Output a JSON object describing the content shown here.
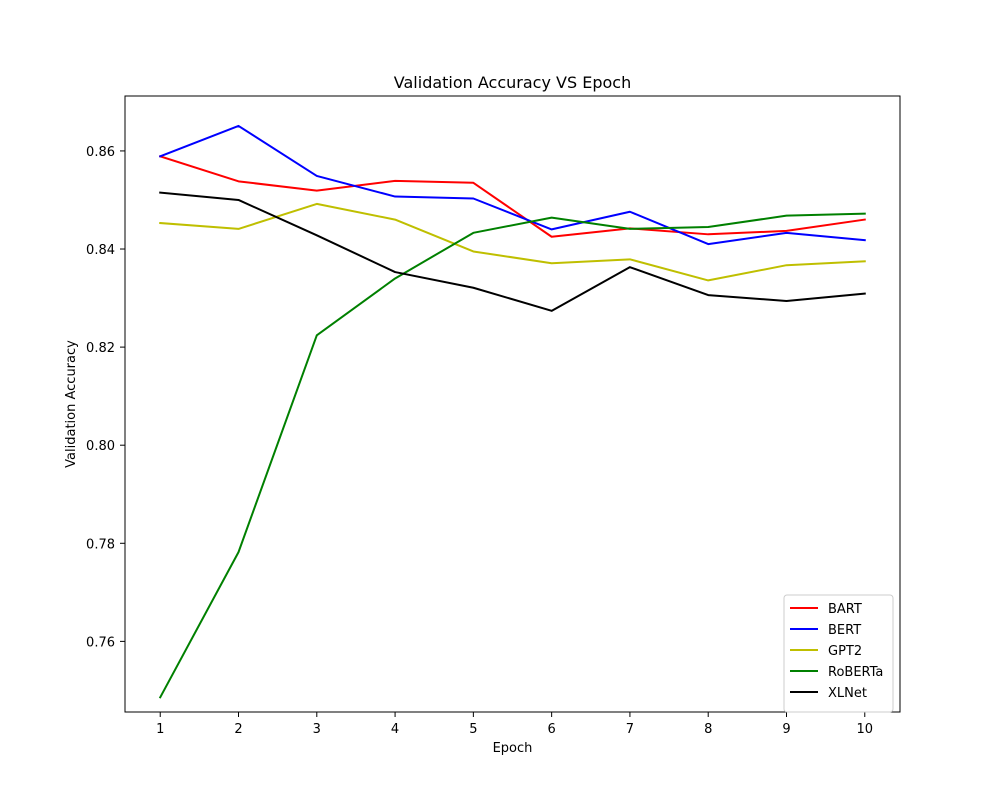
{
  "chart_data": {
    "type": "line",
    "title": "Validation Accuracy VS Epoch",
    "xlabel": "Epoch",
    "ylabel": "Validation Accuracy",
    "x": [
      1,
      2,
      3,
      4,
      5,
      6,
      7,
      8,
      9,
      10
    ],
    "xlim": [
      0.55,
      10.45
    ],
    "ylim": [
      0.7456,
      0.8712
    ],
    "yticks": [
      0.76,
      0.78,
      0.8,
      0.82,
      0.84,
      0.86
    ],
    "ytick_labels": [
      "0.76",
      "0.78",
      "0.80",
      "0.82",
      "0.84",
      "0.86"
    ],
    "xtick_labels": [
      "1",
      "2",
      "3",
      "4",
      "5",
      "6",
      "7",
      "8",
      "9",
      "10"
    ],
    "grid": false,
    "legend_position": "lower-right",
    "series": [
      {
        "name": "BART",
        "color": "#ff0000",
        "values": [
          0.8589,
          0.8538,
          0.8519,
          0.8539,
          0.8535,
          0.8425,
          0.8442,
          0.843,
          0.8437,
          0.846
        ]
      },
      {
        "name": "BERT",
        "color": "#0000ff",
        "values": [
          0.8589,
          0.8651,
          0.8549,
          0.8507,
          0.8503,
          0.844,
          0.8476,
          0.841,
          0.8433,
          0.8418
        ]
      },
      {
        "name": "GPT2",
        "color": "#bfbf00",
        "values": [
          0.8453,
          0.8441,
          0.8492,
          0.846,
          0.8395,
          0.8371,
          0.8379,
          0.8336,
          0.8367,
          0.8375
        ]
      },
      {
        "name": "RoBERTa",
        "color": "#008000",
        "values": [
          0.7486,
          0.7782,
          0.8224,
          0.834,
          0.8433,
          0.8464,
          0.8441,
          0.8445,
          0.8468,
          0.8472
        ]
      },
      {
        "name": "XLNet",
        "color": "#000000",
        "values": [
          0.8515,
          0.85,
          0.8428,
          0.8353,
          0.8321,
          0.8274,
          0.8363,
          0.8306,
          0.8294,
          0.8309
        ]
      }
    ]
  }
}
